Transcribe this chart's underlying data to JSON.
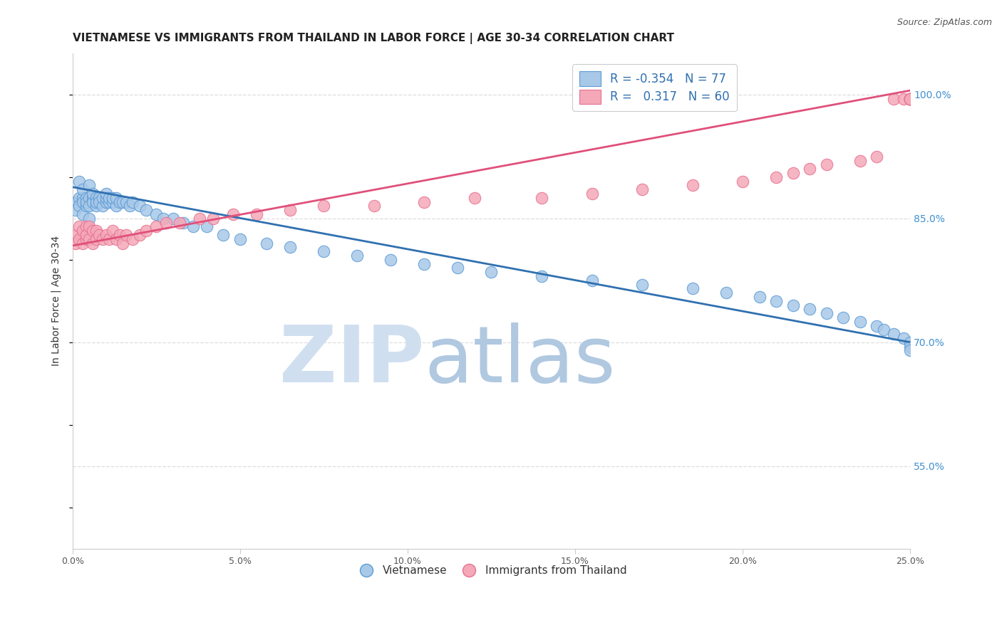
{
  "title": "VIETNAMESE VS IMMIGRANTS FROM THAILAND IN LABOR FORCE | AGE 30-34 CORRELATION CHART",
  "source_text": "Source: ZipAtlas.com",
  "ylabel": "In Labor Force | Age 30-34",
  "xlim": [
    0.0,
    0.25
  ],
  "ylim": [
    0.45,
    1.05
  ],
  "xticks": [
    0.0,
    0.05,
    0.1,
    0.15,
    0.2,
    0.25
  ],
  "xtick_labels": [
    "0.0%",
    "5.0%",
    "10.0%",
    "15.0%",
    "20.0%",
    "25.0%"
  ],
  "yticks_right": [
    0.55,
    0.7,
    0.85,
    1.0
  ],
  "ytick_labels_right": [
    "55.0%",
    "70.0%",
    "85.0%",
    "100.0%"
  ],
  "blue_color": "#a8c8e8",
  "pink_color": "#f4a8b8",
  "blue_edge_color": "#5b9bd5",
  "pink_edge_color": "#e87090",
  "blue_line_color": "#3070b0",
  "pink_line_color": "#e0507a",
  "legend_R_blue": "-0.354",
  "legend_N_blue": "77",
  "legend_R_pink": "0.317",
  "legend_N_pink": "60",
  "watermark_zip": "ZIP",
  "watermark_atlas": "atlas",
  "watermark_color_zip": "#d0dff0",
  "watermark_color_atlas": "#b0c8e0",
  "title_fontsize": 11,
  "label_fontsize": 10,
  "tick_fontsize": 9,
  "blue_x": [
    0.001,
    0.001,
    0.002,
    0.002,
    0.002,
    0.003,
    0.003,
    0.003,
    0.003,
    0.004,
    0.004,
    0.004,
    0.005,
    0.005,
    0.005,
    0.005,
    0.006,
    0.006,
    0.006,
    0.007,
    0.007,
    0.007,
    0.008,
    0.008,
    0.009,
    0.009,
    0.01,
    0.01,
    0.01,
    0.011,
    0.011,
    0.012,
    0.012,
    0.013,
    0.013,
    0.014,
    0.015,
    0.016,
    0.017,
    0.018,
    0.02,
    0.022,
    0.025,
    0.027,
    0.03,
    0.033,
    0.036,
    0.04,
    0.045,
    0.05,
    0.058,
    0.065,
    0.075,
    0.085,
    0.095,
    0.105,
    0.115,
    0.125,
    0.14,
    0.155,
    0.17,
    0.185,
    0.195,
    0.205,
    0.21,
    0.215,
    0.22,
    0.225,
    0.23,
    0.235,
    0.24,
    0.242,
    0.245,
    0.248,
    0.25,
    0.25,
    0.25
  ],
  "blue_y": [
    0.87,
    0.86,
    0.875,
    0.865,
    0.895,
    0.875,
    0.87,
    0.885,
    0.855,
    0.875,
    0.865,
    0.87,
    0.875,
    0.865,
    0.89,
    0.85,
    0.875,
    0.87,
    0.88,
    0.875,
    0.865,
    0.87,
    0.875,
    0.87,
    0.865,
    0.875,
    0.87,
    0.875,
    0.88,
    0.87,
    0.875,
    0.87,
    0.875,
    0.865,
    0.875,
    0.87,
    0.87,
    0.87,
    0.865,
    0.87,
    0.865,
    0.86,
    0.855,
    0.85,
    0.85,
    0.845,
    0.84,
    0.84,
    0.83,
    0.825,
    0.82,
    0.815,
    0.81,
    0.805,
    0.8,
    0.795,
    0.79,
    0.785,
    0.78,
    0.775,
    0.77,
    0.765,
    0.76,
    0.755,
    0.75,
    0.745,
    0.74,
    0.735,
    0.73,
    0.725,
    0.72,
    0.715,
    0.71,
    0.705,
    0.7,
    0.695,
    0.69
  ],
  "pink_x": [
    0.001,
    0.001,
    0.002,
    0.002,
    0.003,
    0.003,
    0.004,
    0.004,
    0.004,
    0.005,
    0.005,
    0.006,
    0.006,
    0.007,
    0.007,
    0.008,
    0.009,
    0.01,
    0.011,
    0.012,
    0.013,
    0.014,
    0.015,
    0.016,
    0.018,
    0.02,
    0.022,
    0.025,
    0.028,
    0.032,
    0.038,
    0.042,
    0.048,
    0.055,
    0.065,
    0.075,
    0.09,
    0.105,
    0.12,
    0.14,
    0.155,
    0.17,
    0.185,
    0.2,
    0.21,
    0.215,
    0.22,
    0.225,
    0.235,
    0.24,
    0.245,
    0.248,
    0.25,
    0.25,
    0.25,
    0.25,
    0.25,
    0.25,
    0.25,
    0.25
  ],
  "pink_y": [
    0.83,
    0.82,
    0.84,
    0.825,
    0.835,
    0.82,
    0.84,
    0.825,
    0.83,
    0.84,
    0.825,
    0.835,
    0.82,
    0.835,
    0.825,
    0.83,
    0.825,
    0.83,
    0.825,
    0.835,
    0.825,
    0.83,
    0.82,
    0.83,
    0.825,
    0.83,
    0.835,
    0.84,
    0.845,
    0.845,
    0.85,
    0.85,
    0.855,
    0.855,
    0.86,
    0.865,
    0.865,
    0.87,
    0.875,
    0.875,
    0.88,
    0.885,
    0.89,
    0.895,
    0.9,
    0.905,
    0.91,
    0.915,
    0.92,
    0.925,
    0.995,
    0.995,
    0.995,
    0.995,
    0.995,
    0.995,
    0.995,
    0.995,
    0.995,
    0.995
  ],
  "bg_color": "#ffffff",
  "grid_color": "#dddddd",
  "axis_color": "#cccccc",
  "right_tick_color": "#4090d0",
  "legend_text_color": "#3070b0"
}
